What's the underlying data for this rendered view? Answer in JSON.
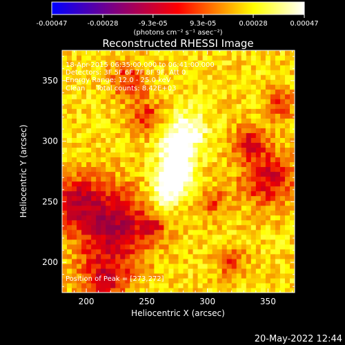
{
  "chart_data": {
    "type": "heatmap",
    "title": "Reconstructed RHESSI Image",
    "xlabel": "Heliocentric X (arcsec)",
    "ylabel": "Heliocentric Y (arcsec)",
    "xlim": [
      180,
      372
    ],
    "ylim": [
      175,
      375
    ],
    "x_ticks": [
      200,
      250,
      300,
      350
    ],
    "y_ticks": [
      200,
      250,
      300,
      350
    ],
    "colorbar": {
      "range": [
        -0.00047,
        0.00047
      ],
      "tick_values": [
        -0.00047,
        -0.00028,
        -9.3e-05,
        9.3e-05,
        0.00028,
        0.00047
      ],
      "tick_labels": [
        "-0.00047",
        "-0.00028",
        "-9.3e-05",
        "9.3e-05",
        "0.00028",
        "0.00047"
      ],
      "unit_label": "(photons cm⁻² s⁻¹ asec⁻²)",
      "colormap": [
        "#0000ff",
        "#ff0000",
        "#ffff00",
        "#ffffff"
      ]
    },
    "info_lines": [
      "18-Apr-2015 06:35:00.000 to 06:41:00.000",
      "Detectors: 3F 5F 6F 7F 8F 9F, Att 0",
      "Energy Range: 12.0 - 25.0 keV",
      "Clean     Total counts: 8.42E+03"
    ],
    "peak_label": "Position of Peak = [273,272]",
    "peak_position": [
      273,
      272
    ],
    "sources": [
      {
        "x": 273,
        "y": 272,
        "sigma": 9,
        "amp": 0.00047
      },
      {
        "x": 275,
        "y": 295,
        "sigma": 10,
        "amp": 0.00034
      },
      {
        "x": 262,
        "y": 255,
        "sigma": 10,
        "amp": 0.0002
      },
      {
        "x": 285,
        "y": 312,
        "sigma": 12,
        "amp": 0.00018
      }
    ],
    "background_level": 0.00024,
    "negative_regions": [
      {
        "x": 225,
        "y": 230,
        "sigma": 22,
        "amp": -0.00038
      },
      {
        "x": 190,
        "y": 250,
        "sigma": 16,
        "amp": -0.0003
      },
      {
        "x": 350,
        "y": 270,
        "sigma": 16,
        "amp": -0.0003
      },
      {
        "x": 215,
        "y": 185,
        "sigma": 14,
        "amp": -0.00028
      },
      {
        "x": 250,
        "y": 320,
        "sigma": 10,
        "amp": -0.00022
      },
      {
        "x": 235,
        "y": 350,
        "sigma": 11,
        "amp": -0.00024
      },
      {
        "x": 335,
        "y": 300,
        "sigma": 10,
        "amp": -0.00024
      },
      {
        "x": 305,
        "y": 250,
        "sigma": 8,
        "amp": -0.0002
      },
      {
        "x": 360,
        "y": 330,
        "sigma": 10,
        "amp": -0.00018
      },
      {
        "x": 320,
        "y": 200,
        "sigma": 9,
        "amp": -0.0002
      },
      {
        "x": 255,
        "y": 230,
        "sigma": 6,
        "amp": -0.00016
      }
    ]
  },
  "footer": {
    "timestamp": "20-May-2022 12:44"
  }
}
